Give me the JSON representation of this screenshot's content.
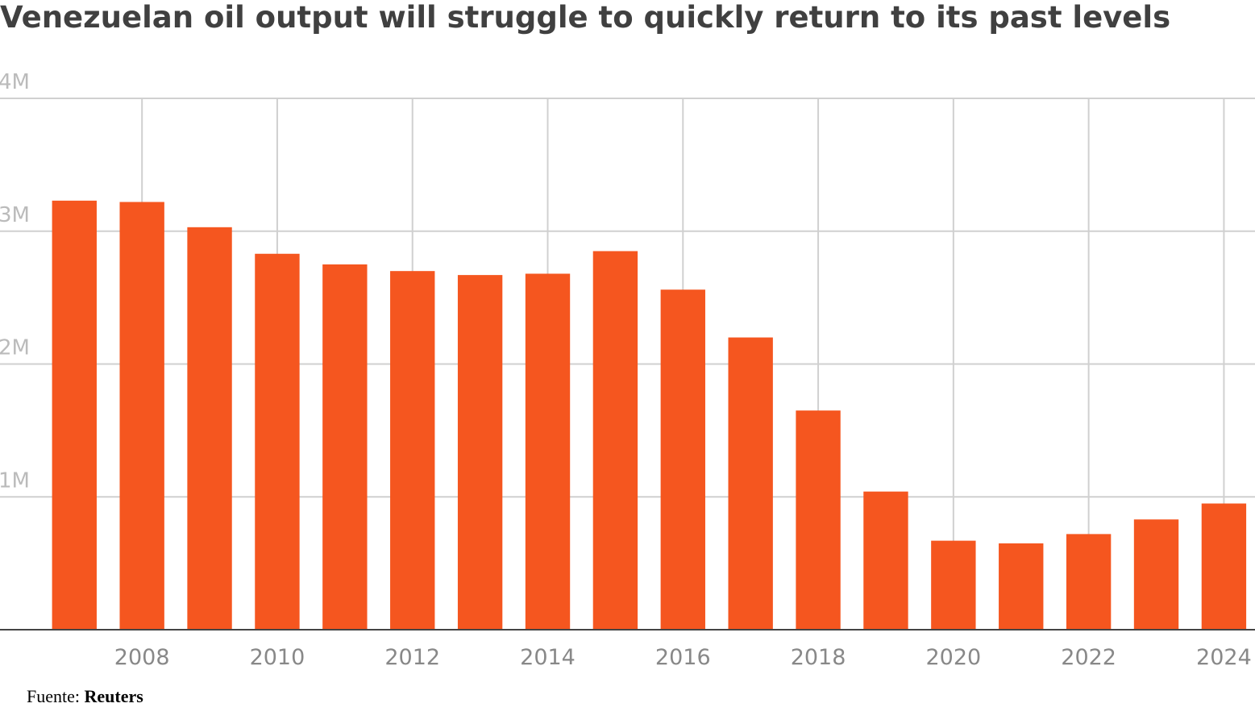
{
  "chart_data": {
    "type": "bar",
    "title": "Venezuelan oil output will struggle to quickly return to its past levels",
    "x": [
      2007,
      2008,
      2009,
      2010,
      2011,
      2012,
      2013,
      2014,
      2015,
      2016,
      2017,
      2018,
      2019,
      2020,
      2021,
      2022,
      2023,
      2024
    ],
    "values": [
      3230000,
      3220000,
      3030000,
      2830000,
      2750000,
      2700000,
      2670000,
      2680000,
      2850000,
      2560000,
      2200000,
      1650000,
      1040000,
      670000,
      650000,
      720000,
      830000,
      950000
    ],
    "color": "#f5561f",
    "xlim": [
      2005.9,
      2024.46
    ],
    "xticks": [
      2008,
      2010,
      2012,
      2014,
      2016,
      2018,
      2020,
      2022,
      2024
    ],
    "ylim": [
      0,
      4000000
    ],
    "yticks": [
      {
        "value": 1000000,
        "label": "1M"
      },
      {
        "value": 2000000,
        "label": "2M"
      },
      {
        "value": 3000000,
        "label": "3M"
      },
      {
        "value": 4000000,
        "label": "4M"
      }
    ],
    "grid": true,
    "source_label": "Fuente:",
    "source": "Reuters"
  }
}
